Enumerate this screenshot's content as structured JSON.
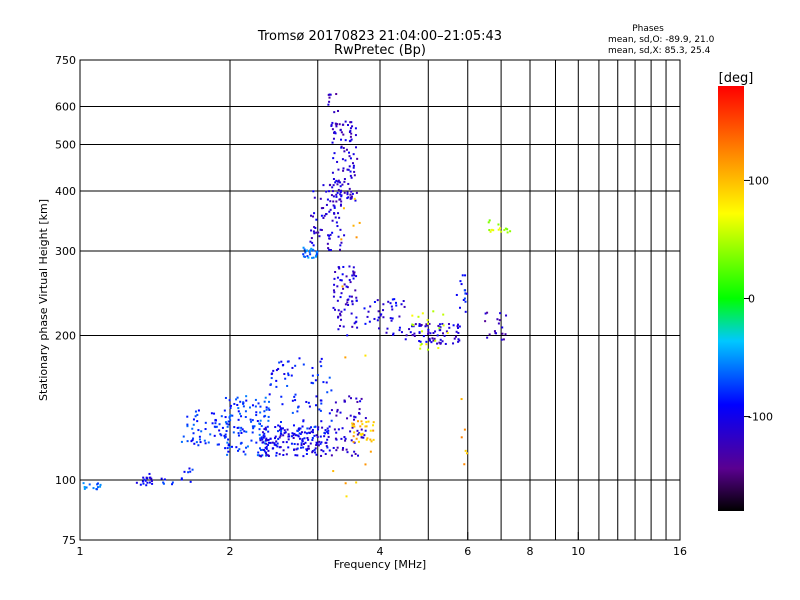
{
  "header": {
    "title": "Tromsø 20170823 21:04:00–21:05:43",
    "subtitle": "RwPretec (Bp)",
    "stats_title": "Phases",
    "stats_line1": "mean, sd,O: -89.9, 21.0",
    "stats_line2": "mean, sd,X: 85.3, 25.4"
  },
  "chart_data": {
    "type": "scatter",
    "xlabel": "Frequency [MHz]",
    "ylabel": "Stationary phase Virtual Height [km]",
    "x_scale": "log",
    "y_scale": "log",
    "xlim": [
      1,
      16
    ],
    "ylim": [
      75,
      750
    ],
    "x_ticks": [
      1,
      2,
      4,
      6,
      8,
      10,
      16
    ],
    "x_minor_ticks": [
      3,
      5,
      7,
      9,
      11,
      12,
      13,
      14,
      15
    ],
    "y_ticks": [
      75,
      100,
      200,
      300,
      400,
      500,
      600,
      750
    ],
    "grid": true,
    "colorbar": {
      "label": "[deg]",
      "range": [
        -180,
        180
      ],
      "ticks": [
        100,
        0,
        -100
      ]
    },
    "clusters": [
      {
        "x": [
          1.0,
          1.1
        ],
        "y": [
          95,
          99
        ],
        "phase": -60,
        "n": 14
      },
      {
        "x": [
          1.3,
          1.4
        ],
        "y": [
          97,
          103
        ],
        "phase": -95,
        "n": 18
      },
      {
        "x": [
          1.45,
          1.55
        ],
        "y": [
          96,
          101
        ],
        "phase": -80,
        "n": 6
      },
      {
        "x": [
          1.6,
          1.7
        ],
        "y": [
          98,
          107
        ],
        "phase": -90,
        "n": 8
      },
      {
        "x": [
          1.6,
          2.0
        ],
        "y": [
          118,
          140
        ],
        "phase": -80,
        "n": 60
      },
      {
        "x": [
          1.95,
          2.4
        ],
        "y": [
          112,
          150
        ],
        "phase": -75,
        "n": 120
      },
      {
        "x": [
          2.3,
          3.2
        ],
        "y": [
          112,
          130
        ],
        "phase": -100,
        "n": 170
      },
      {
        "x": [
          2.4,
          3.2
        ],
        "y": [
          125,
          180
        ],
        "phase": -85,
        "n": 80
      },
      {
        "x": [
          3.2,
          3.75
        ],
        "y": [
          112,
          150
        ],
        "phase": -115,
        "n": 60
      },
      {
        "x": [
          3.5,
          3.9
        ],
        "y": [
          120,
          133
        ],
        "phase": 100,
        "n": 30
      },
      {
        "x": [
          2.8,
          3.0
        ],
        "y": [
          290,
          305
        ],
        "phase": -60,
        "n": 25
      },
      {
        "x": [
          2.9,
          3.4
        ],
        "y": [
          300,
          420
        ],
        "phase": -110,
        "n": 80
      },
      {
        "x": [
          3.2,
          3.6
        ],
        "y": [
          380,
          560
        ],
        "phase": -115,
        "n": 100
      },
      {
        "x": [
          3.15,
          3.3
        ],
        "y": [
          520,
          640
        ],
        "phase": -120,
        "n": 12
      },
      {
        "x": [
          3.2,
          3.6
        ],
        "y": [
          200,
          280
        ],
        "phase": -110,
        "n": 70
      },
      {
        "x": [
          3.7,
          4.5
        ],
        "y": [
          200,
          240
        ],
        "phase": -105,
        "n": 40
      },
      {
        "x": [
          4.5,
          5.8
        ],
        "y": [
          192,
          212
        ],
        "phase": -110,
        "n": 70
      },
      {
        "x": [
          4.5,
          5.5
        ],
        "y": [
          185,
          225
        ],
        "phase": 60,
        "n": 20
      },
      {
        "x": [
          5.7,
          6.0
        ],
        "y": [
          220,
          270
        ],
        "phase": -90,
        "n": 15
      },
      {
        "x": [
          6.5,
          7.2
        ],
        "y": [
          195,
          225
        ],
        "phase": -120,
        "n": 18
      },
      {
        "x": [
          6.6,
          7.3
        ],
        "y": [
          325,
          350
        ],
        "phase": 50,
        "n": 15
      },
      {
        "x": [
          3.2,
          3.9
        ],
        "y": [
          80,
          400
        ],
        "phase": 100,
        "n": 15
      },
      {
        "x": [
          5.8,
          6.0
        ],
        "y": [
          100,
          150
        ],
        "phase": 110,
        "n": 6
      }
    ]
  }
}
